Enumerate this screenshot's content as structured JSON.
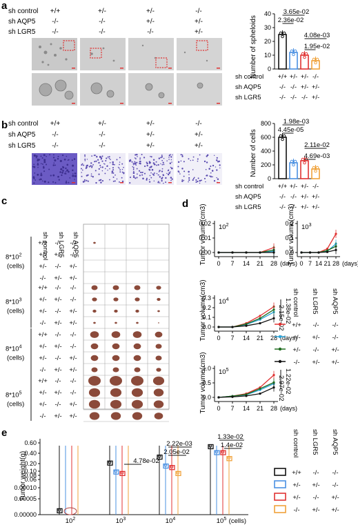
{
  "panels": {
    "a": "a",
    "b": "b",
    "c": "c",
    "d": "d",
    "e": "e"
  },
  "a": {
    "rows": [
      {
        "label": "sh control",
        "vals": [
          "+/+",
          "+/-",
          "+/-",
          "-/-"
        ]
      },
      {
        "label": "sh AQP5",
        "vals": [
          "-/-",
          "-/-",
          "+/-",
          "+/-"
        ]
      },
      {
        "label": "sh LGR5",
        "vals": [
          "-/-",
          "-/-",
          "-/-",
          "+/-"
        ]
      }
    ]
  },
  "b": {
    "rows": [
      {
        "label": "sh control",
        "vals": [
          "+/+",
          "+/-",
          "+/-",
          "-/-"
        ]
      },
      {
        "label": "sh AQP5",
        "vals": [
          "-/-",
          "-/-",
          "+/-",
          "+/-"
        ]
      },
      {
        "label": "sh LGR5",
        "vals": [
          "-/-",
          "-/-",
          "+/-",
          "+/-"
        ]
      }
    ]
  },
  "chart_a": {
    "type": "bar",
    "ylabel": "Number of spheloids",
    "ylim": [
      0,
      40
    ],
    "yticks": [
      "0",
      "10",
      "20",
      "30",
      "40"
    ],
    "values": [
      25,
      12,
      10,
      6
    ],
    "pvalues": [
      "3.65e-02",
      "2.36e-02",
      "4.08e-03",
      "1.95e-02"
    ],
    "under": [
      {
        "label": "sh control",
        "vals": [
          "+/+",
          "+/-",
          "+/-",
          "-/-"
        ]
      },
      {
        "label": "sh AQP5",
        "vals": [
          "-/-",
          "-/-",
          "+/-",
          "+/-"
        ]
      },
      {
        "label": "sh LGR5",
        "vals": [
          "-/-",
          "-/-",
          "-/-",
          "+/-"
        ]
      }
    ]
  },
  "chart_b": {
    "type": "bar",
    "ylabel": "Number of cells",
    "ylim": [
      0,
      800
    ],
    "yticks": [
      "0",
      "200",
      "400",
      "600",
      "800"
    ],
    "values": [
      600,
      230,
      260,
      140
    ],
    "pvalues": [
      "1.98e-03",
      "4.45e-05",
      "2.11e-02",
      "4.69e-03"
    ],
    "under": [
      {
        "label": "sh control",
        "vals": [
          "+/+",
          "+/-",
          "+/-",
          "-/-"
        ]
      },
      {
        "label": "sh AQP5",
        "vals": [
          "-/-",
          "-/-",
          "+/-",
          "+/-"
        ]
      },
      {
        "label": "sh LGR5",
        "vals": [
          "-/-",
          "-/-",
          "+/-",
          "+/-"
        ]
      }
    ]
  },
  "c": {
    "headers": [
      "sh control",
      "sh LGR5",
      "sh AQP5"
    ],
    "groups": [
      {
        "dose": "8*10",
        "exp": "2",
        "cells": "(cells)"
      },
      {
        "dose": "8*10",
        "exp": "3",
        "cells": "(cells)"
      },
      {
        "dose": "8*10",
        "exp": "4",
        "cells": "(cells)"
      },
      {
        "dose": "8*10",
        "exp": "5",
        "cells": "(cells)"
      }
    ],
    "rows": [
      [
        "+/+",
        "-/-",
        "-/-"
      ],
      [
        "+/-",
        "+/-",
        "-/-"
      ],
      [
        "+/-",
        "-/-",
        "+/-"
      ],
      [
        "-/-",
        "+/-",
        "+/-"
      ]
    ]
  },
  "d": {
    "ylabel": "Tumor  volume(cm3)",
    "xlabel": "(days)",
    "xticks": [
      "0",
      "7",
      "14",
      "21",
      "28"
    ],
    "plots": [
      {
        "exp": "2",
        "yticks": [
          "0.00",
          "0.01",
          "0.02"
        ]
      },
      {
        "exp": "3",
        "yticks": [
          "0.0",
          "0.1",
          "0.2"
        ]
      },
      {
        "exp": "4",
        "yticks": [
          "0.0",
          "0.1",
          "0.2",
          "0.3"
        ],
        "pvalues": [
          "1.38e-02",
          "2.15e-02"
        ]
      },
      {
        "exp": "5",
        "yticks": [
          "0.0",
          "0.5",
          "1.0"
        ],
        "pvalues": [
          "1.22e-02",
          "2.97e-02"
        ]
      }
    ],
    "legend_headers": [
      "sh control",
      "sh LGR5",
      "sh AQP5"
    ],
    "legend": [
      {
        "vals": [
          "+/+",
          "-/-",
          "-/-"
        ],
        "color": "#e03131"
      },
      {
        "vals": [
          "+/-",
          "+/-",
          "-/-"
        ],
        "color": "#2aa3d8"
      },
      {
        "vals": [
          "+/-",
          "-/-",
          "+/-"
        ],
        "color": "#1f6b1f"
      },
      {
        "vals": [
          "-/-",
          "+/-",
          "+/-"
        ],
        "color": "#111111"
      }
    ]
  },
  "e": {
    "ylabel": "Tumor weight(g)",
    "yticks": [
      "0.60",
      "0.40",
      "0.20",
      "0.10",
      "0.08",
      "0.06",
      "0.00010",
      "0.00005",
      "0.00000"
    ],
    "groups": [
      "10",
      "10",
      "10",
      "10"
    ],
    "exps": [
      "2",
      "3",
      "4",
      "5"
    ],
    "xunit": "(cells)",
    "pvalues": [
      "4.78e-02",
      "2.22e-03",
      "2.05e-02",
      "1.33e-02",
      "1.4e-02"
    ],
    "legend_headers": [
      "sh control",
      "sh LGR5",
      "sh AQP5"
    ],
    "legend": [
      {
        "vals": [
          "+/+",
          "-/-",
          "-/-"
        ],
        "color": "#111111"
      },
      {
        "vals": [
          "+/-",
          "+/-",
          "-/-"
        ],
        "color": "#4a90e2"
      },
      {
        "vals": [
          "+/-",
          "-/-",
          "+/-"
        ],
        "color": "#e03131"
      },
      {
        "vals": [
          "-/-",
          "+/-",
          "+/-"
        ],
        "color": "#f0a23a"
      }
    ]
  },
  "colors": {
    "control": "#111111",
    "lgr5": "#4a90e2",
    "aqp5": "#e03131",
    "double": "#f0a23a",
    "red_box": "#e03131",
    "tumor": "#8b4a3a",
    "crystal": "#5a4bb0"
  }
}
